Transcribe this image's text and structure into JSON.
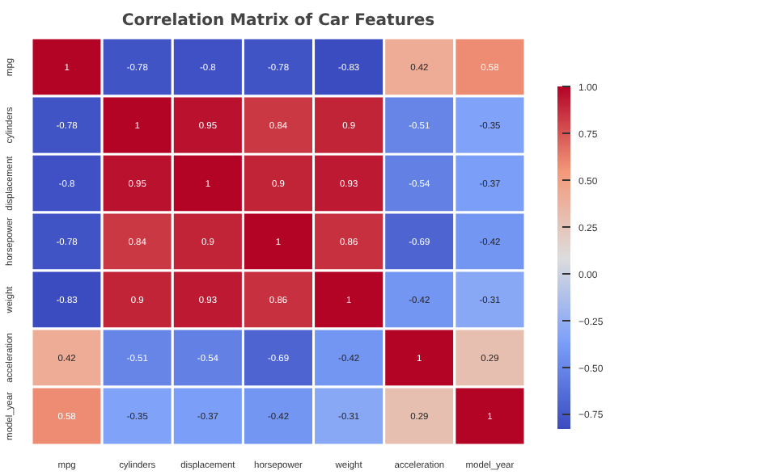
{
  "chart_data": {
    "type": "heatmap",
    "title": "Correlation Matrix of Car Features",
    "categories": [
      "mpg",
      "cylinders",
      "displacement",
      "horsepower",
      "weight",
      "acceleration",
      "model_year"
    ],
    "y_categories": [
      "mpg",
      "cylinders",
      "displacement",
      "horsepower",
      "weight",
      "acceleration",
      "model_year"
    ],
    "cells": [
      [
        1,
        -0.78,
        -0.8,
        -0.78,
        -0.83,
        0.42,
        0.58
      ],
      [
        -0.78,
        1,
        0.95,
        0.84,
        0.9,
        -0.51,
        -0.35
      ],
      [
        -0.8,
        0.95,
        1,
        0.9,
        0.93,
        -0.54,
        -0.37
      ],
      [
        -0.78,
        0.84,
        0.9,
        1,
        0.86,
        -0.69,
        -0.42
      ],
      [
        -0.83,
        0.9,
        0.93,
        0.86,
        1,
        -0.42,
        -0.31
      ],
      [
        0.42,
        -0.51,
        -0.54,
        -0.69,
        -0.42,
        1,
        0.29
      ],
      [
        0.58,
        -0.35,
        -0.37,
        -0.42,
        -0.31,
        0.29,
        1
      ]
    ],
    "data_labels": true,
    "clim": [
      -0.83,
      1
    ],
    "cticks": [
      {
        "value": -0.75,
        "label": "−0.75"
      },
      {
        "value": -0.5,
        "label": "−0.50"
      },
      {
        "value": -0.25,
        "label": "−0.25"
      },
      {
        "value": 0,
        "label": "0.00"
      },
      {
        "value": 0.25,
        "label": "0.25"
      },
      {
        "value": 0.5,
        "label": "0.50"
      },
      {
        "value": 0.75,
        "label": "0.75"
      },
      {
        "value": 1,
        "label": "1.00"
      }
    ]
  }
}
